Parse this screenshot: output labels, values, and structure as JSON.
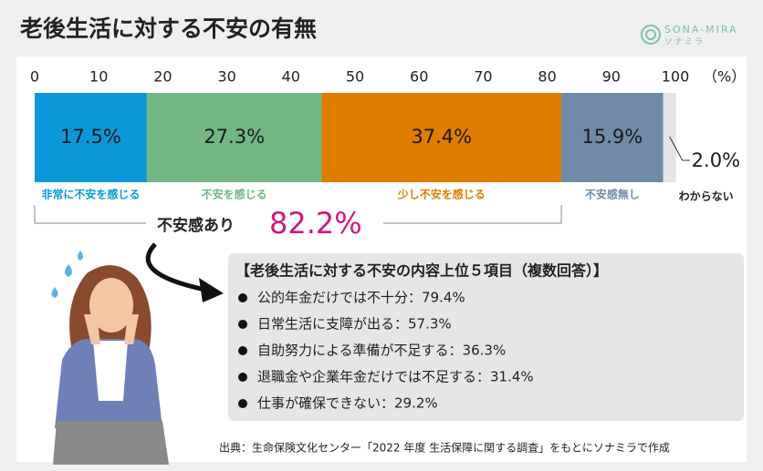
{
  "chart_data": {
    "type": "stacked_bar",
    "title": "老後生活に対する不安の有無",
    "brand": "SONA-MIRA",
    "brand_sub": "ソナミラ",
    "x_label": "（%）",
    "xlim": [
      0,
      100
    ],
    "xticks": [
      0,
      10,
      20,
      30,
      40,
      50,
      60,
      70,
      80,
      90,
      100
    ],
    "series": [
      {
        "name": "非常に不安を感じる",
        "color": "#0a98d8",
        "values": [
          17.5
        ],
        "value_labels": [
          "17.5%"
        ]
      },
      {
        "name": "不安を感じる",
        "color": "#74b783",
        "values": [
          27.3
        ],
        "value_labels": [
          "27.3%"
        ]
      },
      {
        "name": "少し不安を感じる",
        "color": "#e07c00",
        "values": [
          37.4
        ],
        "value_labels": [
          "37.4%"
        ]
      },
      {
        "name": "不安感無し",
        "color": "#6f8ba9",
        "values": [
          15.9
        ],
        "value_labels": [
          "15.9%"
        ]
      },
      {
        "name": "わからない",
        "color": "#e4e4e4",
        "values": [
          2.0
        ],
        "value_labels": [
          "2.0%"
        ]
      }
    ],
    "total_label": "不安感あり",
    "total": 82.2,
    "total_value_label": "82.2%",
    "box_title": "【老後生活に対する不安の内容上位５項目（複数回答）】",
    "box_items": [
      "公的年金だけでは不十分：79.4%",
      "日常生活に支障が出る：57.3%",
      "自助努力による準備が不足する：36.3%",
      "退職金や企業年金だけでは不足する：31.4%",
      "仕事が確保できない：29.2%"
    ],
    "source": "出典：生命保険文化センター「2022 年度 生活保障に関する調査」をもとにソナミラで作成"
  }
}
